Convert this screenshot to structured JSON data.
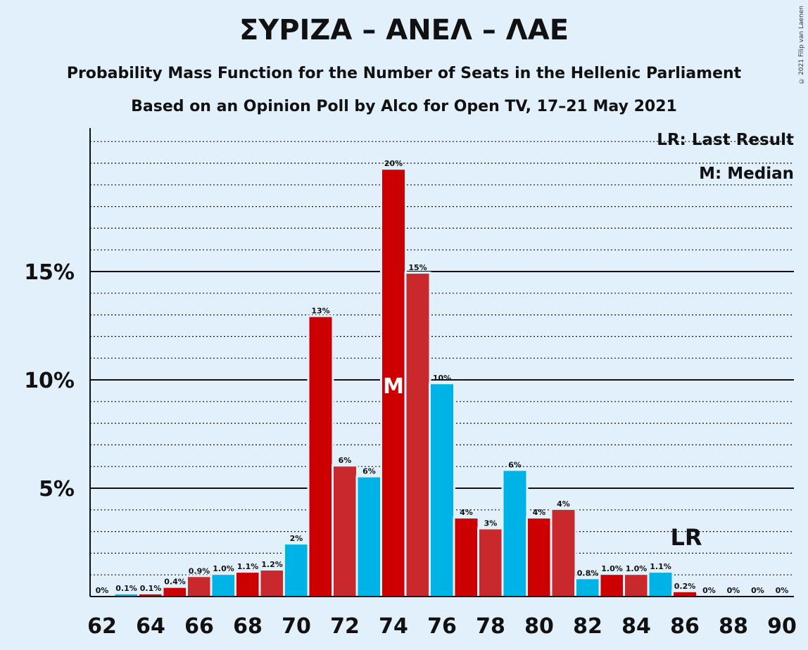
{
  "title": "ΣΥΡΙΖΑ – ΑΝΕΛ – ΛΑΕ",
  "subtitle": "Probability Mass Function for the Number of Seats in the Hellenic Parliament",
  "subtitle2": "Based on an Opinion Poll by Alco for Open TV, 17–21 May 2021",
  "legend": {
    "last_result": "LR: Last Result",
    "median": "M: Median"
  },
  "copyright": "© 2021 Filip van Laenen",
  "colors": {
    "background": "#e2f0fc",
    "party_a": "#cc0000",
    "party_b": "#c9292d",
    "party_c": "#00b3e6"
  },
  "chart_data": {
    "type": "bar",
    "x": [
      62,
      63,
      64,
      65,
      66,
      67,
      68,
      69,
      70,
      71,
      72,
      73,
      74,
      75,
      76,
      77,
      78,
      79,
      80,
      81,
      82,
      83,
      84,
      85,
      86,
      87,
      88,
      89,
      90
    ],
    "values": [
      0,
      0.1,
      0.1,
      0.4,
      0.9,
      1.0,
      1.1,
      1.2,
      2.4,
      12.9,
      6.0,
      5.5,
      19.7,
      14.9,
      9.8,
      3.6,
      3.1,
      5.8,
      3.6,
      4.0,
      0.8,
      1.0,
      1.0,
      1.1,
      0.2,
      0,
      0,
      0,
      0
    ],
    "labels": [
      "0%",
      "0.1%",
      "0.1%",
      "0.4%",
      "0.9%",
      "1.0%",
      "1.1%",
      "1.2%",
      "2%",
      "13%",
      "6%",
      "6%",
      "20%",
      "15%",
      "10%",
      "4%",
      "3%",
      "6%",
      "4%",
      "4%",
      "0.8%",
      "1.0%",
      "1.0%",
      "1.1%",
      "0.2%",
      "0%",
      "0%",
      "0%",
      "0%"
    ],
    "bar_colors": [
      "#c9292d",
      "#00b3e6",
      "#cc0000",
      "#cc0000",
      "#c9292d",
      "#00b3e6",
      "#cc0000",
      "#c9292d",
      "#00b3e6",
      "#cc0000",
      "#c9292d",
      "#00b3e6",
      "#cc0000",
      "#c9292d",
      "#00b3e6",
      "#cc0000",
      "#c9292d",
      "#00b3e6",
      "#cc0000",
      "#c9292d",
      "#00b3e6",
      "#cc0000",
      "#c9292d",
      "#00b3e6",
      "#cc0000",
      "#c9292d",
      "#00b3e6",
      "#cc0000",
      "#c9292d"
    ],
    "x_tick_labels": [
      "62",
      "64",
      "66",
      "68",
      "70",
      "72",
      "74",
      "76",
      "78",
      "80",
      "82",
      "84",
      "86",
      "88",
      "90"
    ],
    "y_tick_labels": [
      "5%",
      "10%",
      "15%"
    ],
    "y_ticks": [
      5,
      10,
      15
    ],
    "ylim": [
      0,
      21.6
    ],
    "median_seat": 74,
    "median_label": "M",
    "last_result_seat": 86,
    "last_result_label": "LR"
  }
}
